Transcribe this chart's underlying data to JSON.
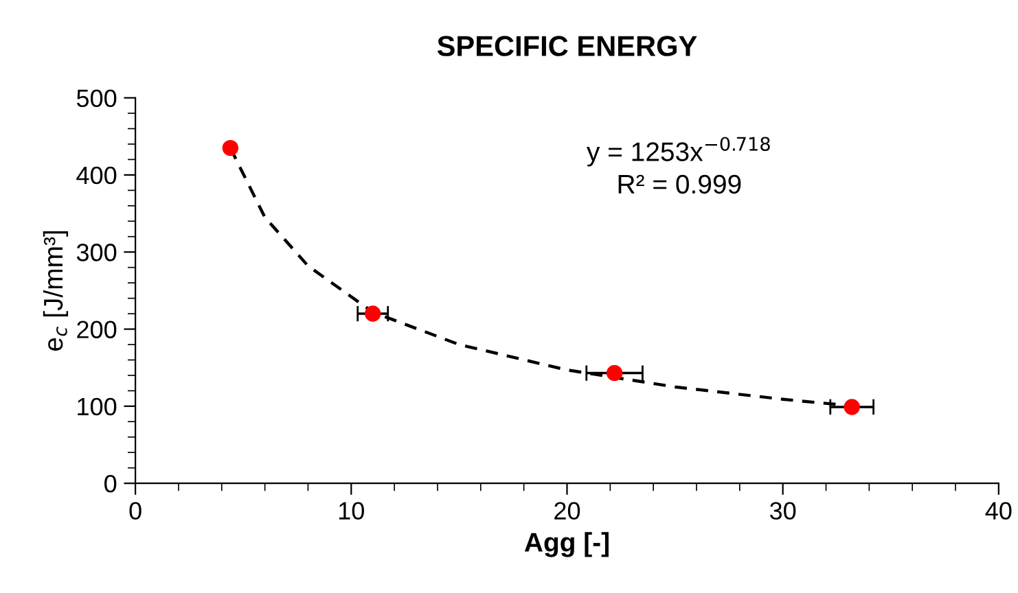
{
  "chart_data": {
    "type": "scatter",
    "title": "SPECIFIC ENERGY",
    "xlabel": "Agg [-]",
    "ylabel": "e$_{c}$ [J/mm³]",
    "annotations": [
      "y = 1253x$^{−0.718}$",
      "R² = 0.999"
    ],
    "xlim": [
      0,
      40
    ],
    "ylim": [
      0,
      500
    ],
    "xticks": [
      0,
      {
        "value": 2,
        "label": null
      },
      {
        "value": 4,
        "label": null
      },
      {
        "value": 6,
        "label": null
      },
      {
        "value": 8,
        "label": null
      },
      10,
      {
        "value": 12,
        "label": null
      },
      {
        "value": 14,
        "label": null
      },
      {
        "value": 16,
        "label": null
      },
      {
        "value": 18,
        "label": null
      },
      20,
      {
        "value": 22,
        "label": null
      },
      {
        "value": 24,
        "label": null
      },
      {
        "value": 26,
        "label": null
      },
      {
        "value": 28,
        "label": null
      },
      30,
      {
        "value": 32,
        "label": null
      },
      {
        "value": 34,
        "label": null
      },
      {
        "value": 36,
        "label": null
      },
      {
        "value": 38,
        "label": null
      },
      40
    ],
    "yticks": [
      0,
      {
        "value": 20,
        "label": null
      },
      {
        "value": 40,
        "label": null
      },
      {
        "value": 60,
        "label": null
      },
      {
        "value": 80,
        "label": null
      },
      100,
      {
        "value": 120,
        "label": null
      },
      {
        "value": 140,
        "label": null
      },
      {
        "value": 160,
        "label": null
      },
      {
        "value": 180,
        "label": null
      },
      200,
      {
        "value": 220,
        "label": null
      },
      {
        "value": 240,
        "label": null
      },
      {
        "value": 260,
        "label": null
      },
      {
        "value": 280,
        "label": null
      },
      300,
      {
        "value": 320,
        "label": null
      },
      {
        "value": 340,
        "label": null
      },
      {
        "value": 360,
        "label": null
      },
      {
        "value": 380,
        "label": null
      },
      400,
      {
        "value": 420,
        "label": null
      },
      {
        "value": 440,
        "label": null
      },
      {
        "value": 460,
        "label": null
      },
      {
        "value": 480,
        "label": null
      },
      500
    ],
    "grid": false,
    "legend": false,
    "series": [
      {
        "type": "line",
        "color": "#000000",
        "line_style": "dashed",
        "marker": "none",
        "x": [
          4.4,
          6,
          8,
          11,
          15,
          20,
          25,
          30,
          33
        ],
        "values": [
          435,
          345,
          282,
          222,
          180,
          147,
          125,
          109,
          101
        ]
      },
      {
        "color": "#ff0000",
        "marker": "circle",
        "x": [
          4.4,
          11.0,
          22.2,
          33.2
        ],
        "values": [
          435,
          220,
          143,
          99
        ],
        "xerrors": [
          null,
          0.7,
          1.3,
          1.0
        ]
      }
    ]
  }
}
